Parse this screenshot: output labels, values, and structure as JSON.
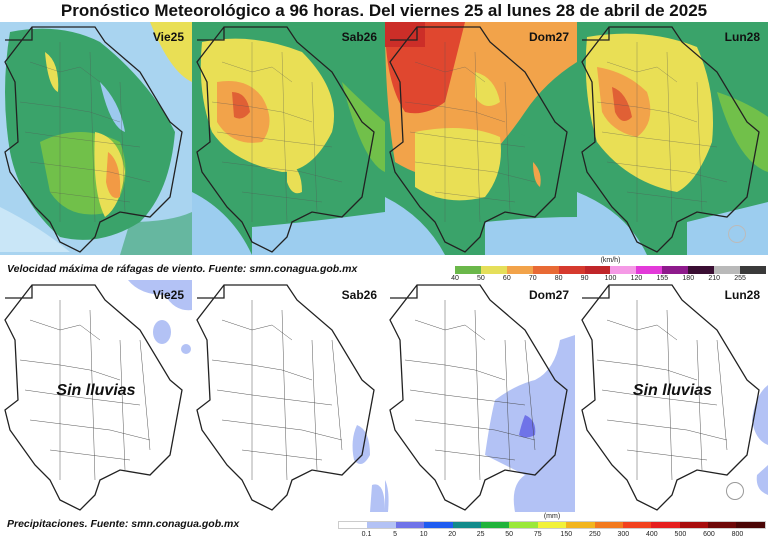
{
  "header": {
    "title": "Pronóstico Meteorológico a 96 horas. Del viernes 25 al lunes 28 de abril de 2025"
  },
  "wind": {
    "caption": "Velocidad máxima de ráfagas de viento.   Fuente: smn.conagua.gob.mx",
    "panels": [
      {
        "label": "Vie25"
      },
      {
        "label": "Sab26"
      },
      {
        "label": "Dom27"
      },
      {
        "label": "Lun28"
      }
    ],
    "legend": {
      "unit": "(km/h)",
      "ticks": [
        "40",
        "50",
        "60",
        "70",
        "80",
        "90",
        "100",
        "120",
        "155",
        "180",
        "210",
        "255"
      ],
      "colors": [
        "#6bb84a",
        "#e5df5a",
        "#f2a34a",
        "#e86a35",
        "#d63a2e",
        "#c0262a",
        "#f59ae6",
        "#e33ad9",
        "#8e1a8c",
        "#3a0e33",
        "#b9b9b9",
        "#3a3a3a"
      ]
    }
  },
  "precip": {
    "caption": "Precipitaciones. Fuente: smn.conagua.gob.mx",
    "panels": [
      {
        "label": "Vie25",
        "status": "Sin lluvias"
      },
      {
        "label": "Sab26",
        "status": ""
      },
      {
        "label": "Dom27",
        "status": ""
      },
      {
        "label": "Lun28",
        "status": "Sin lluvias"
      }
    ],
    "legend": {
      "unit": "(mm)",
      "ticks": [
        "0.1",
        "5",
        "10",
        "20",
        "25",
        "50",
        "75",
        "150",
        "250",
        "300",
        "400",
        "500",
        "600",
        "800"
      ],
      "colors": [
        "#ffffff",
        "#b3c2f5",
        "#6f73e8",
        "#1f5cf0",
        "#138a8a",
        "#21b33b",
        "#9ae83a",
        "#f2f23a",
        "#f2b51f",
        "#f27a1f",
        "#f2421f",
        "#e61f1f",
        "#a80d0d",
        "#6e0808",
        "#4a0505"
      ]
    }
  }
}
